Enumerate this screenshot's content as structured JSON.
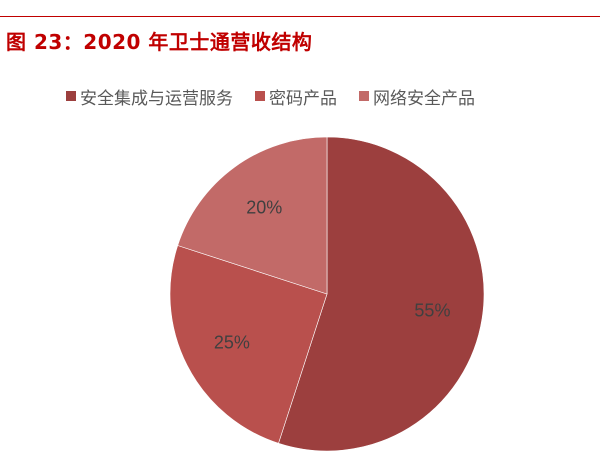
{
  "title": "图 23：2020 年卫士通营收结构",
  "colors": {
    "title": "#c00000",
    "rule": "#c00000"
  },
  "chart_data": {
    "type": "pie",
    "title": "2020年卫士通营收结构",
    "legend_position": "top",
    "start_angle_deg": 0,
    "direction": "clockwise",
    "slices": [
      {
        "name": "安全集成与运营服务",
        "value": 55,
        "label": "55%",
        "color": "#9c3f3e"
      },
      {
        "name": "密码产品",
        "value": 25,
        "label": "25%",
        "color": "#b9504d"
      },
      {
        "name": "网络安全产品",
        "value": 20,
        "label": "20%",
        "color": "#c26a68"
      }
    ]
  }
}
